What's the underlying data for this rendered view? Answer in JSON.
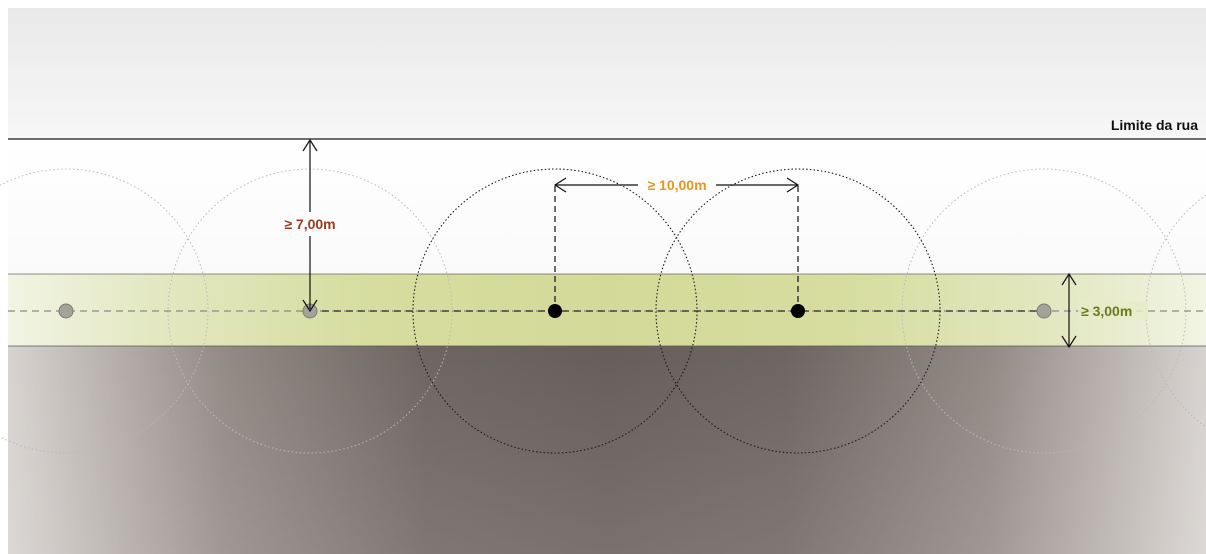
{
  "labels": {
    "street_limit": "Limite da rua",
    "setback": "≥ 7,00m",
    "spacing": "≥ 10,00m",
    "strip_width": "≥ 3,00m"
  },
  "colors": {
    "setback_label": "#A0391E",
    "spacing_label": "#E8961E",
    "strip_label": "#6B7A1E",
    "planting_strip": "#D9E0A6",
    "tree_active": "#000000",
    "tree_faded": "#9C9C94"
  },
  "trees": [
    {
      "state": "faded"
    },
    {
      "state": "faded"
    },
    {
      "state": "active"
    },
    {
      "state": "active"
    },
    {
      "state": "faded"
    }
  ]
}
